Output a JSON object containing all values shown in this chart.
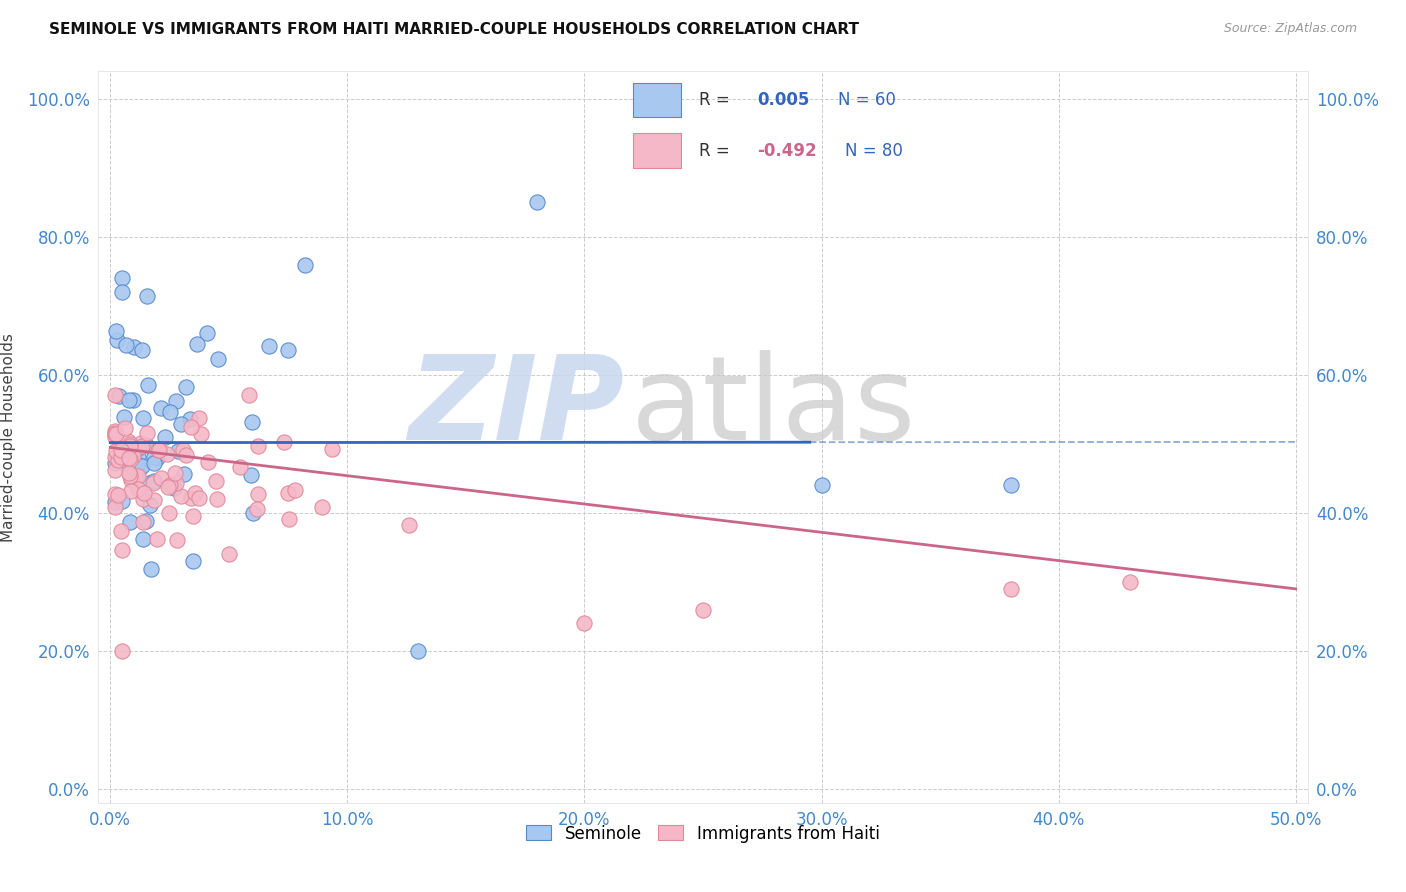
{
  "title": "SEMINOLE VS IMMIGRANTS FROM HAITI MARRIED-COUPLE HOUSEHOLDS CORRELATION CHART",
  "source": "Source: ZipAtlas.com",
  "xlim": [
    0.0,
    0.5
  ],
  "ylim": [
    0.0,
    1.0
  ],
  "xtick_vals": [
    0.0,
    0.1,
    0.2,
    0.3,
    0.4,
    0.5
  ],
  "ytick_vals": [
    0.0,
    0.2,
    0.4,
    0.6,
    0.8,
    1.0
  ],
  "legend_bottom": "Seminole",
  "legend_bottom2": "Immigrants from Haiti",
  "color_blue": "#a8c8f0",
  "color_pink": "#f5b8c8",
  "color_blue_dark": "#5588cc",
  "color_pink_dark": "#e08898",
  "trendline1_color": "#3366bb",
  "trendline2_color": "#cc6688",
  "R1_str": "0.005",
  "R2_str": "-0.492",
  "N1": 60,
  "N2": 80,
  "tick_color": "#4488cc",
  "ylabel": "Married-couple Households",
  "watermark_zip_color": "#c8d8ee",
  "watermark_atlas_color": "#c8c8c8"
}
